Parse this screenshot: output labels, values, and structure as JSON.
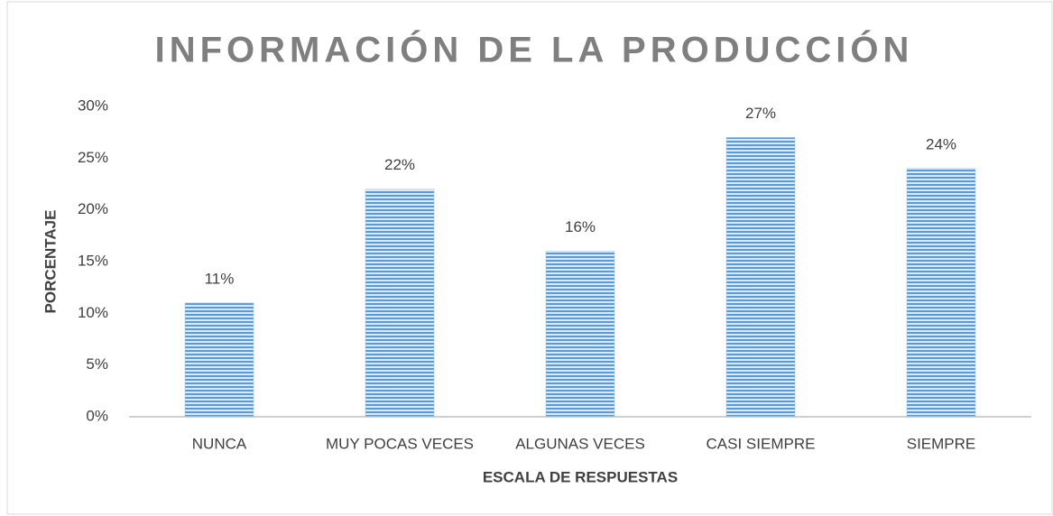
{
  "chart_data": {
    "type": "bar",
    "title": "INFORMACIÓN DE LA PRODUCCIÓN",
    "x_label": "ESCALA DE RESPUESTAS",
    "y_label": "PORCENTAJE",
    "categories": [
      "NUNCA",
      "MUY POCAS VECES",
      "ALGUNAS VECES",
      "CASI SIEMPRE",
      "SIEMPRE"
    ],
    "values": [
      11,
      22,
      16,
      27,
      24
    ],
    "value_labels": [
      "11%",
      "22%",
      "16%",
      "27%",
      "24%"
    ],
    "color": "#5b9bd5",
    "ylim": [
      0,
      30
    ],
    "yticks": [
      {
        "value": 0,
        "label": "0%"
      },
      {
        "value": 5,
        "label": "5%"
      },
      {
        "value": 10,
        "label": "10%"
      },
      {
        "value": 15,
        "label": "15%"
      },
      {
        "value": 20,
        "label": "20%"
      },
      {
        "value": 25,
        "label": "25%"
      },
      {
        "value": 30,
        "label": "30%"
      }
    ],
    "grid": false
  }
}
